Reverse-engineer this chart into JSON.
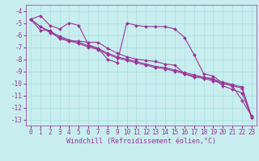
{
  "background_color": "#c8eef0",
  "grid_color": "#aadddd",
  "line_color": "#993399",
  "marker": "D",
  "markersize": 2,
  "linewidth": 0.8,
  "xlabel": "Windchill (Refroidissement éolien,°C)",
  "xlabel_fontsize": 6,
  "xlim": [
    -0.5,
    23.5
  ],
  "ylim": [
    -13.5,
    -3.5
  ],
  "yticks": [
    -13,
    -12,
    -11,
    -10,
    -9,
    -8,
    -7,
    -6,
    -5,
    -4
  ],
  "xticks": [
    0,
    1,
    2,
    3,
    4,
    5,
    6,
    7,
    8,
    9,
    10,
    11,
    12,
    13,
    14,
    15,
    16,
    17,
    18,
    19,
    20,
    21,
    22,
    23
  ],
  "tick_fontsize": 5.5,
  "lines": [
    [
      -4.7,
      -4.4,
      -5.2,
      -5.5,
      -5.0,
      -5.2,
      -6.8,
      -7.1,
      -8.0,
      -8.3,
      -5.0,
      -5.2,
      -5.3,
      -5.3,
      -5.3,
      -5.5,
      -6.2,
      -7.6,
      -9.2,
      -9.4,
      -10.0,
      -10.2,
      -11.4,
      -12.7
    ],
    [
      -4.7,
      -5.6,
      -5.6,
      -6.3,
      -6.5,
      -6.5,
      -6.6,
      -6.6,
      -7.1,
      -7.5,
      -7.8,
      -8.0,
      -8.1,
      -8.2,
      -8.4,
      -8.5,
      -9.2,
      -9.5,
      -9.5,
      -9.6,
      -10.2,
      -10.5,
      -10.8,
      -12.8
    ],
    [
      -4.7,
      -5.3,
      -5.7,
      -6.1,
      -6.4,
      -6.6,
      -6.9,
      -7.1,
      -7.5,
      -7.8,
      -8.0,
      -8.2,
      -8.4,
      -8.6,
      -8.7,
      -8.9,
      -9.1,
      -9.3,
      -9.5,
      -9.7,
      -9.9,
      -10.1,
      -10.3,
      -12.8
    ],
    [
      -4.7,
      -5.3,
      -5.8,
      -6.2,
      -6.5,
      -6.7,
      -7.0,
      -7.2,
      -7.6,
      -7.9,
      -8.1,
      -8.3,
      -8.5,
      -8.7,
      -8.8,
      -9.0,
      -9.2,
      -9.4,
      -9.6,
      -9.8,
      -10.0,
      -10.2,
      -10.4,
      -12.8
    ]
  ]
}
